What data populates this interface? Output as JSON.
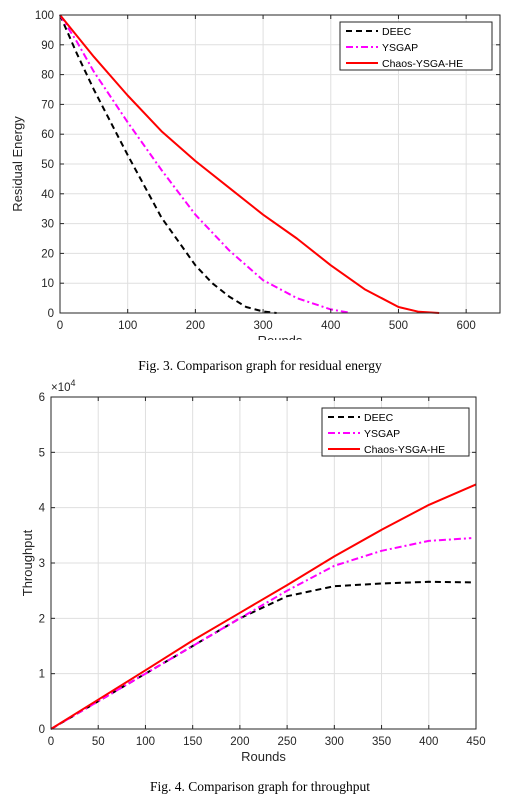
{
  "charts": [
    {
      "caption": "Fig. 3. Comparison graph for residual energy",
      "chart_data": {
        "type": "line",
        "xlabel": "Rounds",
        "ylabel": "Residual Energy",
        "xlim": [
          0,
          650
        ],
        "ylim": [
          0,
          100
        ],
        "xticks": [
          "0",
          "100",
          "200",
          "300",
          "400",
          "500",
          "600"
        ],
        "yticks": [
          "0",
          "10",
          "20",
          "30",
          "40",
          "50",
          "60",
          "70",
          "80",
          "90",
          "100"
        ],
        "grid": true,
        "legend_position": "top-right",
        "series": [
          {
            "name": "DEEC",
            "color": "#000000",
            "style": "dashed",
            "x": [
              0,
              25,
              50,
              100,
              150,
              200,
              225,
              250,
              275,
              300,
              320
            ],
            "y": [
              100,
              87,
              75,
              53,
              32,
              16,
              10,
              5.5,
              2,
              0.5,
              0
            ]
          },
          {
            "name": "YSGAP",
            "color": "#ff00ff",
            "style": "dashdot",
            "x": [
              0,
              25,
              50,
              100,
              150,
              200,
              250,
              300,
              350,
              400,
              425
            ],
            "y": [
              100,
              91,
              81,
              64,
              48,
              33,
              21,
              11,
              5,
              1.2,
              0.2
            ]
          },
          {
            "name": "Chaos-YSGA-HE",
            "color": "#ff0000",
            "style": "solid",
            "x": [
              0,
              25,
              50,
              100,
              150,
              200,
              250,
              300,
              350,
              400,
              450,
              500,
              530,
              560
            ],
            "y": [
              100,
              93,
              86,
              73,
              61,
              51,
              42,
              33,
              25,
              16,
              8,
              2,
              0.4,
              0
            ]
          }
        ]
      }
    },
    {
      "caption": "Fig. 4. Comparison graph for throughput",
      "chart_data": {
        "type": "line",
        "xlabel": "Rounds",
        "ylabel": "Throughput",
        "exponent_label": "×10",
        "exponent_power": "4",
        "xlim": [
          0,
          450
        ],
        "ylim": [
          0,
          6
        ],
        "xticks": [
          "0",
          "50",
          "100",
          "150",
          "200",
          "250",
          "300",
          "350",
          "400",
          "450"
        ],
        "yticks": [
          "0",
          "1",
          "2",
          "3",
          "4",
          "5",
          "6"
        ],
        "grid": true,
        "legend_position": "top-right",
        "series": [
          {
            "name": "DEEC",
            "color": "#000000",
            "style": "dashed",
            "x": [
              0,
              50,
              100,
              150,
              200,
              250,
              300,
              350,
              400,
              445
            ],
            "y": [
              0,
              0.5,
              1.0,
              1.5,
              2.0,
              2.4,
              2.58,
              2.63,
              2.66,
              2.65
            ]
          },
          {
            "name": "YSGAP",
            "color": "#ff00ff",
            "style": "dashdot",
            "x": [
              0,
              50,
              100,
              150,
              200,
              250,
              300,
              350,
              400,
              445
            ],
            "y": [
              0,
              0.5,
              1.0,
              1.5,
              2.0,
              2.5,
              2.95,
              3.22,
              3.4,
              3.45
            ]
          },
          {
            "name": "Chaos-YSGA-HE",
            "color": "#ff0000",
            "style": "solid",
            "x": [
              0,
              50,
              100,
              150,
              200,
              250,
              300,
              350,
              400,
              450
            ],
            "y": [
              0,
              0.53,
              1.06,
              1.6,
              2.1,
              2.6,
              3.12,
              3.6,
              4.05,
              4.42
            ]
          }
        ]
      }
    }
  ]
}
